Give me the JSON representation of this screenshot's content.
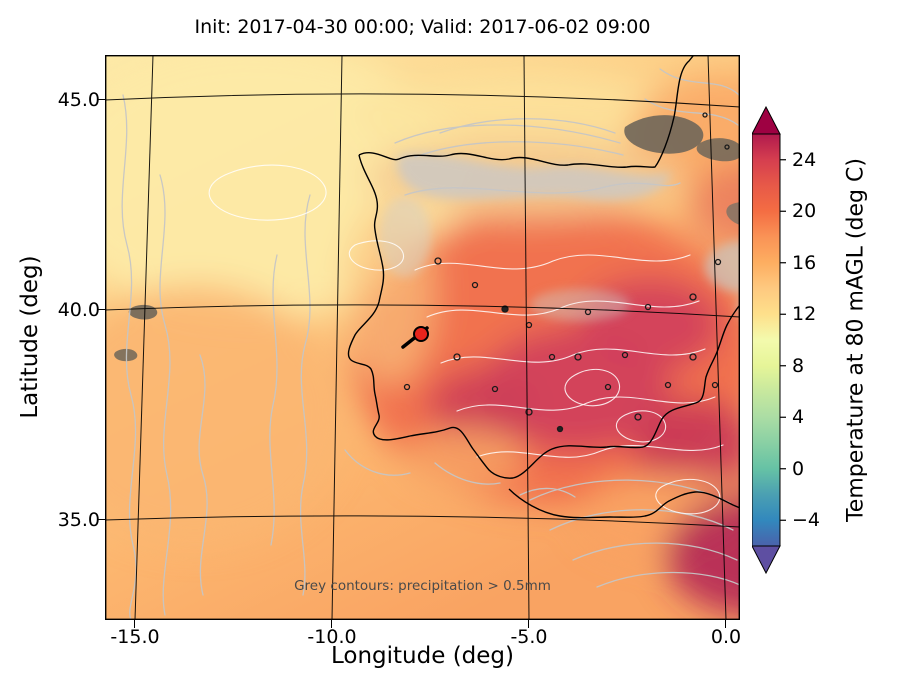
{
  "title": "Init: 2017-04-30 00:00; Valid: 2017-06-02 09:00",
  "axes": {
    "x_label": "Longitude (deg)",
    "y_label": "Latitude (deg)",
    "x_ticks": [
      "-15.0",
      "-10.0",
      "-5.0",
      "0.0"
    ],
    "y_ticks": [
      "45.0",
      "40.0",
      "35.0"
    ]
  },
  "map": {
    "annotation": "Grey contours: precipitation > 0.5mm",
    "marker": {
      "lon": -7.8,
      "lat": 39.4,
      "color": "#e8241c"
    }
  },
  "colorbar": {
    "label": "Temperature at 80 mAGL (deg C)",
    "ticks": [
      "24",
      "20",
      "16",
      "12",
      "8",
      "4",
      "0",
      "−4"
    ],
    "vmin": -6,
    "vmax": 26,
    "over_color": "#9e0142",
    "under_color": "#5e4fa2",
    "stops": [
      {
        "value": 26,
        "color": "#b11a4e"
      },
      {
        "value": 24,
        "color": "#d53e4f"
      },
      {
        "value": 22,
        "color": "#e75948"
      },
      {
        "value": 20,
        "color": "#f46d43"
      },
      {
        "value": 18,
        "color": "#fa9356"
      },
      {
        "value": 16,
        "color": "#fdae61"
      },
      {
        "value": 14,
        "color": "#fec980"
      },
      {
        "value": 12,
        "color": "#fee08b"
      },
      {
        "value": 10,
        "color": "#f3faad"
      },
      {
        "value": 8,
        "color": "#e6f598"
      },
      {
        "value": 6,
        "color": "#c7e89e"
      },
      {
        "value": 4,
        "color": "#abdda4"
      },
      {
        "value": 2,
        "color": "#89d0a4"
      },
      {
        "value": 0,
        "color": "#66c2a5"
      },
      {
        "value": -2,
        "color": "#4ba0b2"
      },
      {
        "value": -4,
        "color": "#3288bd"
      },
      {
        "value": -6,
        "color": "#4a62ab"
      }
    ]
  },
  "chart_data": {
    "type": "heatmap",
    "title": "Init: 2017-04-30 00:00; Valid: 2017-06-02 09:00",
    "xlabel": "Longitude (deg)",
    "ylabel": "Latitude (deg)",
    "xlim": [
      -15.75,
      0.45
    ],
    "ylim": [
      32.6,
      46.1
    ],
    "grid": true,
    "colorbar": {
      "label": "Temperature at 80 mAGL (deg C)",
      "ticks": [
        24,
        20,
        16,
        12,
        8,
        4,
        0,
        -4
      ],
      "colormap": "Spectral-reversed-like",
      "extend": "both"
    },
    "samples": [
      {
        "lon": -14.0,
        "lat": 44.5,
        "temp_c": 12
      },
      {
        "lon": -13.0,
        "lat": 40.0,
        "temp_c": 15
      },
      {
        "lon": -12.0,
        "lat": 35.0,
        "temp_c": 17
      },
      {
        "lon": -8.5,
        "lat": 43.5,
        "temp_c": 13
      },
      {
        "lon": -9.0,
        "lat": 39.0,
        "temp_c": 16
      },
      {
        "lon": -5.0,
        "lat": 40.0,
        "temp_c": 22
      },
      {
        "lon": -4.0,
        "lat": 38.0,
        "temp_c": 25
      },
      {
        "lon": -2.5,
        "lat": 41.5,
        "temp_c": 24
      },
      {
        "lon": -1.0,
        "lat": 37.0,
        "temp_c": 20
      },
      {
        "lon": -3.0,
        "lat": 36.0,
        "temp_c": 18
      },
      {
        "lon": -1.0,
        "lat": 34.8,
        "temp_c": 26
      },
      {
        "lon": -2.0,
        "lat": 44.8,
        "temp_c": 13
      }
    ],
    "annotations": [
      "Grey contours: precipitation > 0.5mm"
    ],
    "marker": {
      "lon": -7.8,
      "lat": 39.4,
      "style": "red filled circle with black edge and black tail line"
    }
  }
}
